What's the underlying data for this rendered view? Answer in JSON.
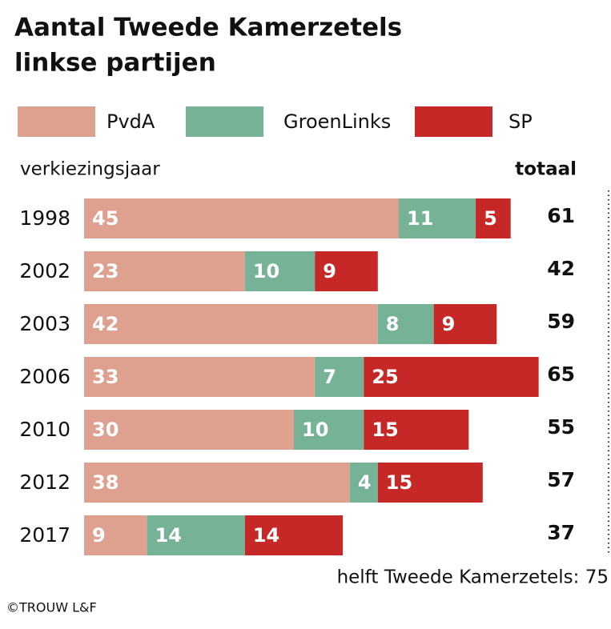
{
  "chart_data": {
    "type": "stacked-bar-horizontal",
    "title": [
      "Aantal Tweede Kamerzetels",
      "linkse partijen"
    ],
    "y_label": "verkiezingsjaar",
    "totals_label": "totaal",
    "categories": [
      "1998",
      "2002",
      "2003",
      "2006",
      "2010",
      "2012",
      "2017"
    ],
    "series": [
      {
        "name": "PvdA",
        "color": "#dea08f",
        "values": [
          45,
          23,
          42,
          33,
          30,
          38,
          9
        ]
      },
      {
        "name": "GroenLinks",
        "color": "#76b396",
        "values": [
          11,
          10,
          8,
          7,
          10,
          4,
          14
        ]
      },
      {
        "name": "SP",
        "color": "#c62828",
        "values": [
          5,
          9,
          9,
          25,
          15,
          15,
          14
        ]
      }
    ],
    "totals": [
      61,
      42,
      59,
      65,
      55,
      57,
      37
    ],
    "xlim": [
      0,
      75
    ],
    "reference_line": {
      "value": 75,
      "label": "helft Tweede Kamerzetels: 75"
    },
    "source": "©TROUW L&F"
  }
}
